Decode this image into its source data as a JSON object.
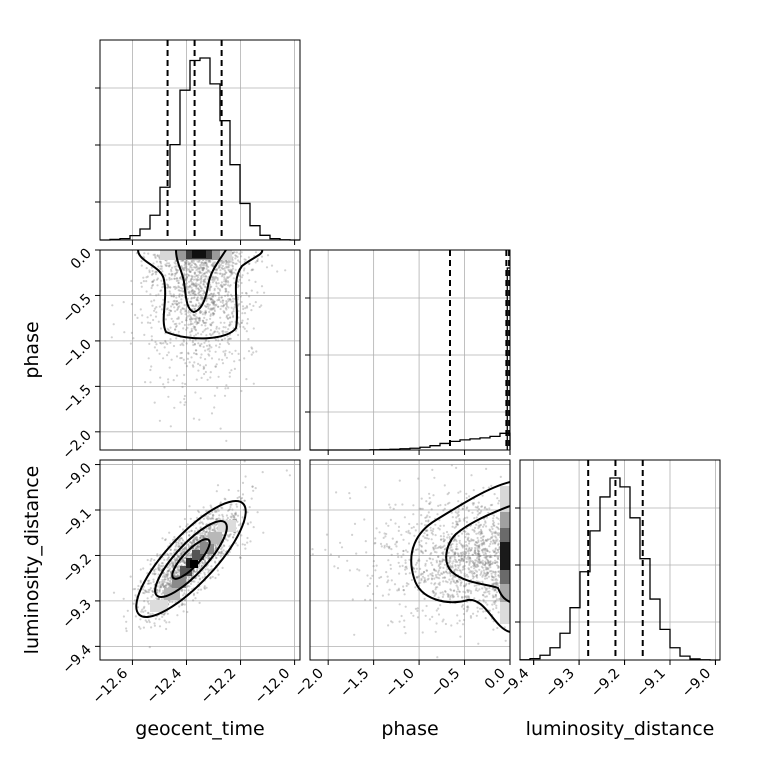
{
  "chart_data": {
    "type": "corner",
    "parameters": [
      "geocent_time",
      "phase",
      "luminosity_distance"
    ],
    "axes": {
      "geocent_time": {
        "label": "geocent_time",
        "range": [
          -12.72,
          -11.98
        ],
        "ticks": [
          -12.6,
          -12.4,
          -12.2,
          -12.0
        ],
        "tick_labels": [
          "−12.6",
          "−12.4",
          "−12.2",
          "−12.0"
        ]
      },
      "phase": {
        "label": "phase",
        "range": [
          -2.2,
          0.0
        ],
        "ticks": [
          -2.0,
          -1.5,
          -1.0,
          -0.5,
          0.0
        ],
        "tick_labels": [
          "−2.0",
          "−1.5",
          "−1.0",
          "−0.5",
          "0.0"
        ]
      },
      "luminosity_distance": {
        "label": "luminosity_distance",
        "range": [
          -9.43,
          -8.99
        ],
        "ticks": [
          -9.4,
          -9.3,
          -9.2,
          -9.1,
          -9.0
        ],
        "tick_labels": [
          "−9.4",
          "−9.3",
          "−9.2",
          "−9.1",
          "−9.0"
        ]
      }
    },
    "histograms": {
      "geocent_time": {
        "bin_start": -12.72,
        "bin_width": 0.037,
        "counts": [
          0,
          2,
          5,
          16,
          40,
          90,
          192,
          347,
          545,
          653,
          662,
          568,
          434,
          274,
          133,
          52,
          17,
          5,
          1,
          0
        ],
        "quantiles": [
          -12.47,
          -12.37,
          -12.27
        ]
      },
      "phase": {
        "bin_start": -2.2,
        "bin_width": 0.11,
        "counts": [
          0,
          0,
          0,
          0,
          0,
          0,
          1,
          2,
          3,
          5,
          7,
          11,
          17,
          26,
          34,
          40,
          44,
          48,
          54,
          66
        ],
        "spike": 720,
        "quantiles": [
          -0.66,
          -0.04,
          -0.01
        ]
      },
      "luminosity_distance": {
        "bin_start": -9.43,
        "bin_width": 0.022,
        "counts": [
          1,
          5,
          17,
          44,
          96,
          188,
          317,
          464,
          586,
          654,
          622,
          511,
          364,
          219,
          110,
          44,
          14,
          4,
          1,
          0
        ],
        "quantiles": [
          -9.28,
          -9.22,
          -9.16
        ]
      }
    }
  }
}
